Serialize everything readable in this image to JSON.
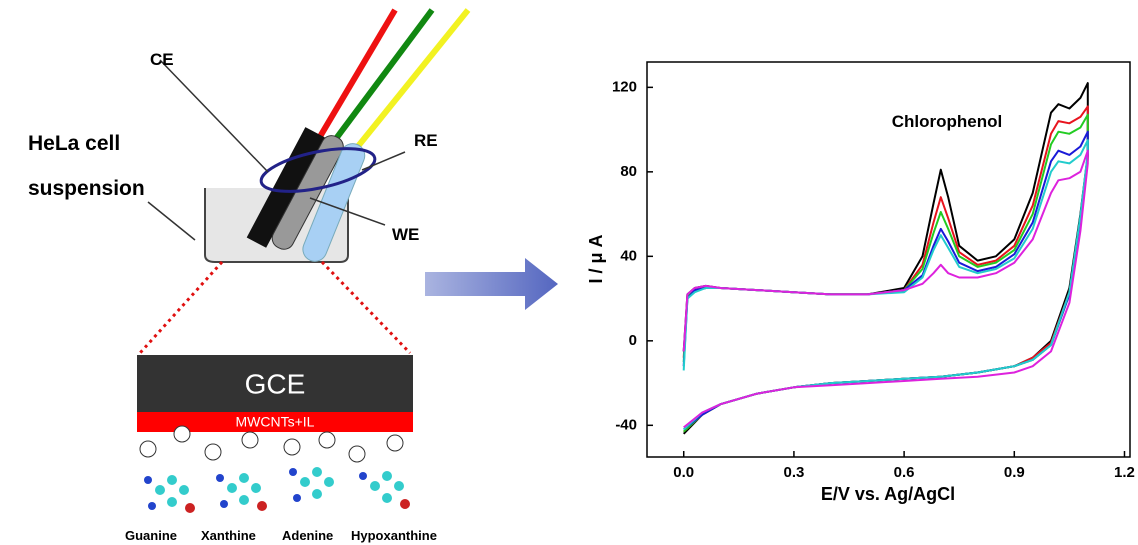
{
  "diagram": {
    "ce": "CE",
    "re": "RE",
    "we": "WE",
    "cell": "HeLa cell",
    "suspension": "suspension",
    "electrode": "GCE",
    "film": "MWCNTs+IL",
    "molecules": [
      "Guanine",
      "Xanthine",
      "Adenine",
      "Hypoxanthine"
    ]
  },
  "chart_data": {
    "type": "line",
    "xlabel": "E/V vs. Ag/AgCl",
    "ylabel": "I / μ A",
    "annotation": "Chlorophenol",
    "xlim": [
      -0.1,
      1.215
    ],
    "ylim": [
      -55,
      132
    ],
    "xticks": [
      {
        "value": 0,
        "label": "0.0"
      },
      0.3,
      0.6,
      0.9,
      1.2
    ],
    "yticks": [
      -40,
      0,
      40,
      80,
      120
    ],
    "grid": false,
    "x": [
      0,
      0.01,
      0.03,
      0.06,
      0.1,
      0.2,
      0.3,
      0.4,
      0.5,
      0.6,
      0.65,
      0.68,
      0.7,
      0.72,
      0.75,
      0.8,
      0.85,
      0.9,
      0.95,
      1.0,
      1.02,
      1.05,
      1.08,
      1.1,
      1.1,
      1.08,
      1.05,
      1.0,
      0.95,
      0.9,
      0.8,
      0.7,
      0.6,
      0.5,
      0.4,
      0.3,
      0.2,
      0.1,
      0.05,
      0
    ],
    "series": [
      {
        "color": "#000000",
        "values": [
          -5,
          22,
          25,
          26,
          25,
          24,
          23,
          22,
          22,
          25,
          40,
          65,
          81,
          68,
          45,
          38,
          40,
          48,
          70,
          108,
          112,
          110,
          115,
          122,
          88,
          60,
          25,
          0,
          -8,
          -12,
          -15,
          -17,
          -18,
          -19,
          -20,
          -22,
          -25,
          -30,
          -35,
          -44
        ]
      },
      {
        "color": "#e8141e",
        "values": [
          -8,
          21,
          24,
          25,
          25,
          24,
          23,
          22,
          22,
          24,
          36,
          56,
          68,
          58,
          42,
          36,
          38,
          45,
          64,
          98,
          104,
          103,
          106,
          111,
          87,
          58,
          23,
          -1,
          -8,
          -12,
          -15,
          -17,
          -18,
          -19,
          -20,
          -22,
          -25,
          -30,
          -35,
          -43
        ]
      },
      {
        "color": "#22cc22",
        "values": [
          -10,
          21,
          24,
          25,
          25,
          24,
          23,
          22,
          22,
          24,
          34,
          51,
          61,
          53,
          40,
          35,
          37,
          43,
          60,
          93,
          99,
          98,
          101,
          107,
          86,
          57,
          22,
          -2,
          -9,
          -12,
          -15,
          -17,
          -18,
          -19,
          -20,
          -22,
          -25,
          -30,
          -35,
          -43
        ]
      },
      {
        "color": "#1a1ad8",
        "values": [
          -12,
          20,
          24,
          25,
          25,
          24,
          23,
          22,
          22,
          24,
          31,
          45,
          53,
          47,
          37,
          33,
          35,
          41,
          56,
          85,
          90,
          88,
          92,
          99,
          88,
          58,
          22,
          -2,
          -9,
          -12,
          -15,
          -17,
          -18,
          -19,
          -20,
          -22,
          -25,
          -30,
          -35,
          -42
        ]
      },
      {
        "color": "#22cccc",
        "values": [
          -14,
          20,
          23,
          25,
          25,
          24,
          23,
          22,
          22,
          23,
          30,
          43,
          50,
          44,
          35,
          32,
          34,
          39,
          53,
          80,
          85,
          84,
          88,
          95,
          89,
          59,
          23,
          -2,
          -9,
          -12,
          -15,
          -17,
          -18,
          -19,
          -20,
          -22,
          -25,
          -30,
          -34,
          -42
        ]
      },
      {
        "color": "#dd22dd",
        "values": [
          -5,
          22,
          25,
          26,
          25,
          24,
          23,
          22,
          22,
          24,
          27,
          32,
          36,
          32,
          30,
          30,
          32,
          37,
          48,
          70,
          76,
          77,
          80,
          90,
          84,
          52,
          18,
          -5,
          -12,
          -15,
          -17,
          -18,
          -19,
          -20,
          -21,
          -22,
          -25,
          -30,
          -34,
          -41
        ]
      }
    ]
  }
}
